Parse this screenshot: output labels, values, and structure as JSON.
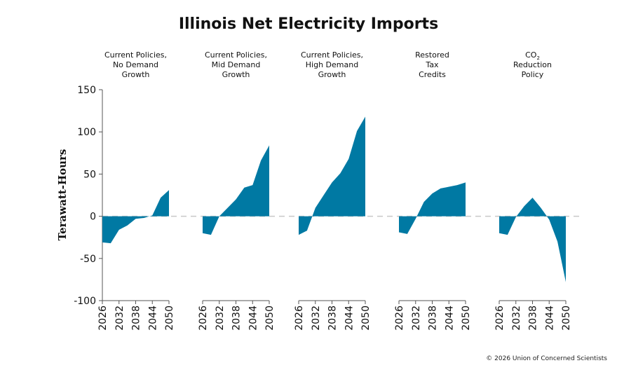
{
  "chart_data": {
    "type": "area",
    "title": "Illinois Net Electricity Imports",
    "ylabel": "Terawatt-Hours",
    "ylim": [
      -100,
      150
    ],
    "yticks": [
      150,
      100,
      50,
      0,
      -50,
      -100
    ],
    "x": [
      2026,
      2029,
      2032,
      2035,
      2038,
      2041,
      2044,
      2047,
      2050
    ],
    "xticks": [
      2026,
      2032,
      2038,
      2044,
      2050
    ],
    "color": "#0079a3",
    "zero_line": "dashed",
    "panels": [
      {
        "title_lines": [
          "Current Policies,",
          "No Demand",
          "Growth"
        ],
        "values": [
          -31,
          -32,
          -16,
          -11,
          -3,
          -2,
          1,
          22,
          31
        ]
      },
      {
        "title_lines": [
          "Current Policies,",
          "Mid Demand",
          "Growth"
        ],
        "values": [
          -20,
          -22,
          0,
          10,
          20,
          34,
          37,
          66,
          84
        ]
      },
      {
        "title_lines": [
          "Current Policies,",
          "High Demand",
          "Growth"
        ],
        "values": [
          -22,
          -17,
          10,
          25,
          40,
          51,
          68,
          101,
          118
        ]
      },
      {
        "title_lines": [
          "Restored",
          "Tax",
          "Credits"
        ],
        "values": [
          -19,
          -21,
          -3,
          17,
          27,
          33,
          35,
          37,
          40
        ]
      },
      {
        "title_lines": [
          "CO₂",
          "Reduction",
          "Policy"
        ],
        "values": [
          -20,
          -22,
          -1,
          12,
          22,
          10,
          -4,
          -30,
          -78
        ]
      }
    ]
  },
  "credit": "© 2026 Union of Concerned Scientists"
}
